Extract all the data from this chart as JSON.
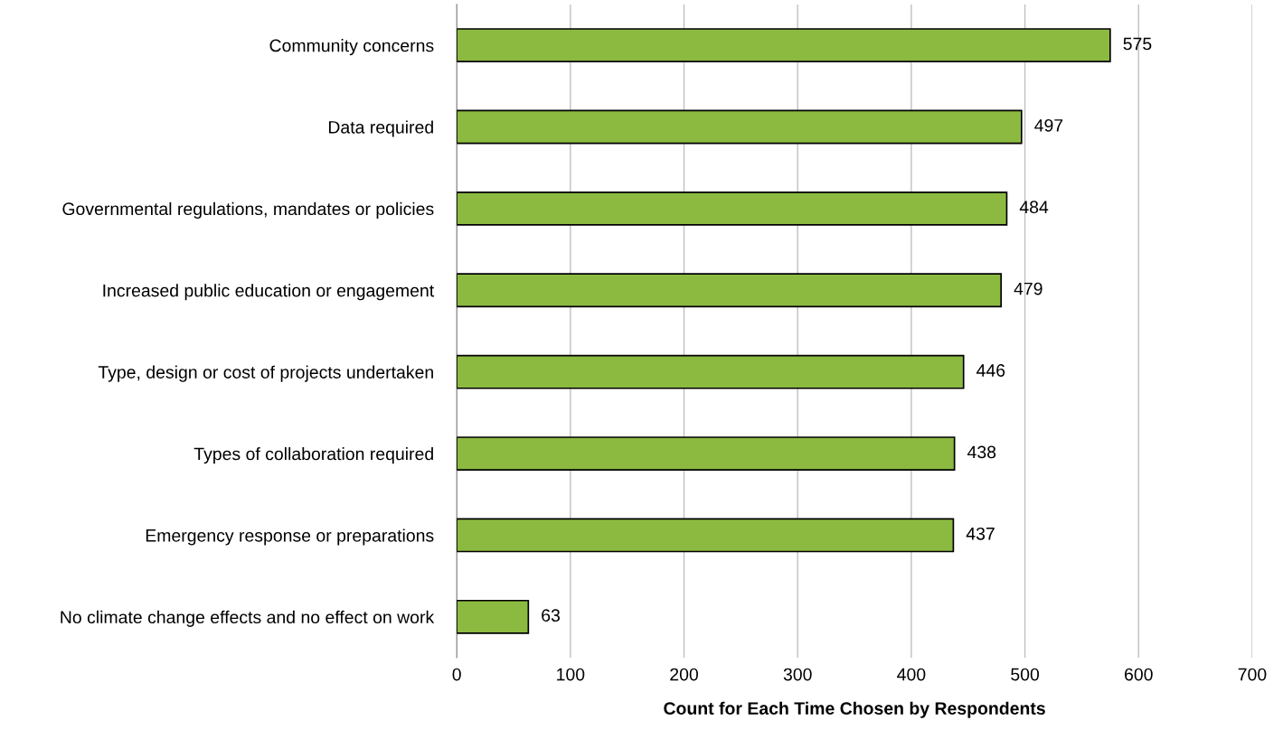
{
  "chart_data": {
    "type": "bar",
    "orientation": "horizontal",
    "categories": [
      "Community concerns",
      "Data required",
      "Governmental regulations, mandates or policies",
      "Increased public education or engagement",
      "Type, design or cost of projects undertaken",
      "Types of collaboration required",
      "Emergency response or preparations",
      "No climate change effects and no effect on work"
    ],
    "values": [
      575,
      497,
      484,
      479,
      446,
      438,
      437,
      63
    ],
    "color": "#8cba41",
    "xlim": [
      0,
      700
    ],
    "xticks": [
      0,
      100,
      200,
      300,
      400,
      500,
      600,
      700
    ],
    "xlabel": "Count for Each Time Chosen by Respondents",
    "grid": "x",
    "data_labels": true
  }
}
